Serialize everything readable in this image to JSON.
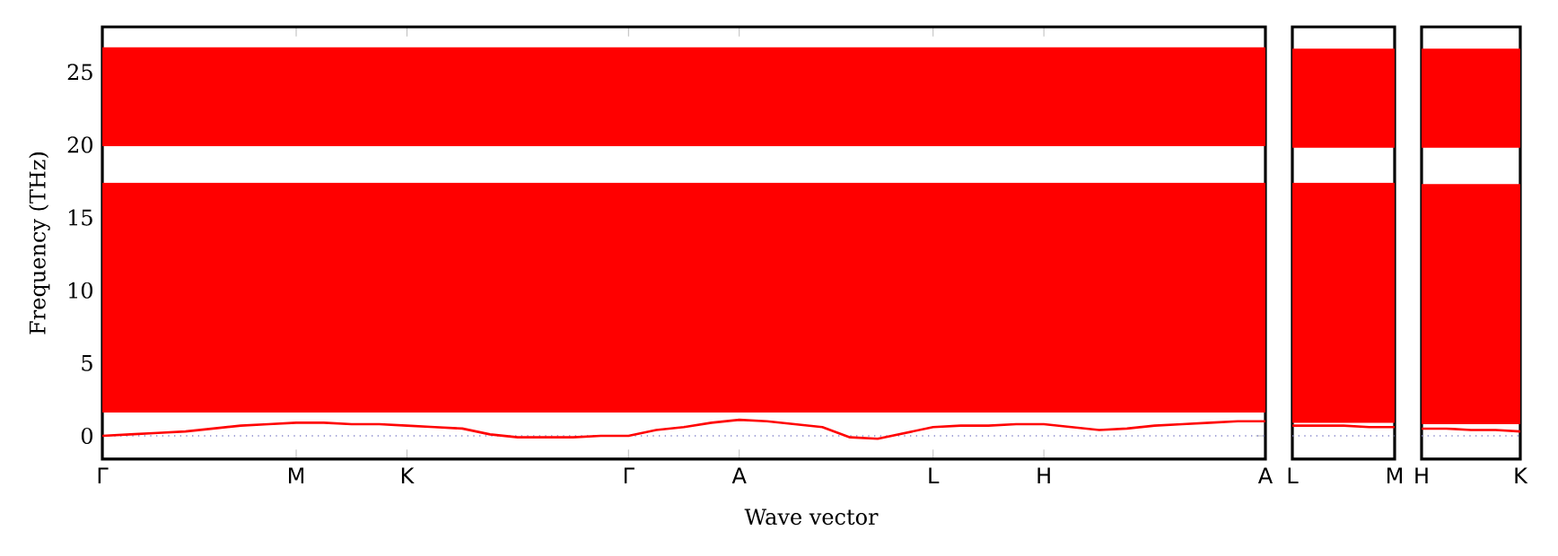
{
  "chart_data": [
    {
      "type": "line",
      "xlabel": "Wave vector",
      "ylabel": "Frequency (THz)",
      "categories": [
        "Γ",
        null,
        null,
        null,
        null,
        null,
        null,
        "M",
        null,
        null,
        null,
        "K",
        null,
        null,
        null,
        null,
        null,
        null,
        null,
        "Γ",
        null,
        null,
        null,
        "A",
        null,
        null,
        null,
        null,
        null,
        null,
        "L",
        null,
        null,
        null,
        "H",
        null,
        null,
        null,
        null,
        null,
        null,
        null,
        "A"
      ],
      "ylim": [
        -1.6,
        28.1
      ],
      "yticks": [
        0,
        5,
        10,
        15,
        20,
        25
      ],
      "series": [
        {
          "color": "#ff0000",
          "values": [
            0,
            0.1,
            0.2,
            0.3,
            0.5,
            0.7,
            0.8,
            0.9,
            0.9,
            0.8,
            0.8,
            0.7,
            0.6,
            0.5,
            0.1,
            -0.1,
            -0.1,
            -0.1,
            0,
            0,
            0.4,
            0.6,
            0.9,
            1.1,
            1,
            0.8,
            0.6,
            -0.1,
            -0.2,
            0.2,
            0.6,
            0.7,
            0.7,
            0.8,
            0.8,
            0.6,
            0.4,
            0.5,
            0.7,
            0.8,
            0.9,
            1,
            1
          ]
        }
      ],
      "bands": [
        {
          "axis": "y",
          "from": 1.6,
          "to": 17.4,
          "color": "#ff0000"
        },
        {
          "axis": "y",
          "from": 19.9,
          "to": 26.7,
          "color": "#ff0000"
        }
      ],
      "ref_lines": [
        {
          "axis": "y",
          "value": 0,
          "color": "#8888cc",
          "line_style": "dotted"
        }
      ],
      "marker": "none",
      "line_style": "solid"
    },
    {
      "type": "line",
      "tick_labels": "x",
      "categories": [
        "L",
        null,
        null,
        null,
        "M"
      ],
      "ylim": [
        -1.6,
        28.1
      ],
      "series": [
        {
          "color": "#ff0000",
          "values": [
            0.7,
            0.7,
            0.7,
            0.6,
            0.6
          ]
        }
      ],
      "bands": [
        {
          "axis": "y",
          "from": 0.9,
          "to": 17.4,
          "color": "#ff0000"
        },
        {
          "axis": "y",
          "from": 19.8,
          "to": 26.6,
          "color": "#ff0000"
        }
      ],
      "ref_lines": [
        {
          "axis": "y",
          "value": 0,
          "color": "#8888cc",
          "line_style": "dotted"
        }
      ],
      "marker": "none",
      "line_style": "solid"
    },
    {
      "type": "line",
      "tick_labels": "x",
      "categories": [
        "H",
        null,
        null,
        null,
        "K"
      ],
      "ylim": [
        -1.6,
        28.1
      ],
      "series": [
        {
          "color": "#ff0000",
          "values": [
            0.5,
            0.5,
            0.4,
            0.4,
            0.3
          ]
        }
      ],
      "bands": [
        {
          "axis": "y",
          "from": 0.8,
          "to": 17.3,
          "color": "#ff0000"
        },
        {
          "axis": "y",
          "from": 19.8,
          "to": 26.6,
          "color": "#ff0000"
        }
      ],
      "ref_lines": [
        {
          "axis": "y",
          "value": 0,
          "color": "#8888cc",
          "line_style": "dotted"
        }
      ],
      "marker": "none",
      "line_style": "solid"
    }
  ]
}
